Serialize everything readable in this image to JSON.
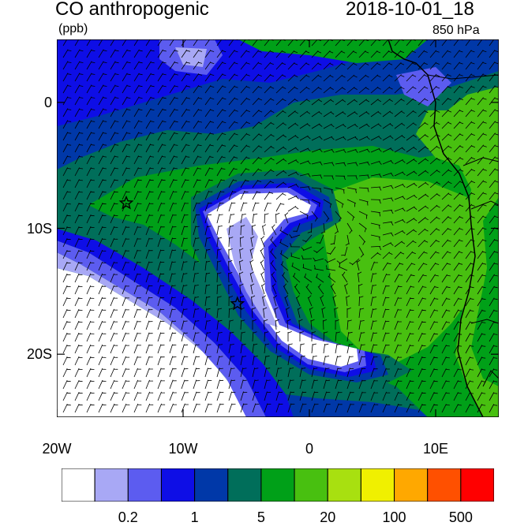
{
  "header": {
    "title": "CO anthropogenic",
    "units": "(ppb)",
    "datetime": "2018-10-01_18",
    "level": "850 hPa"
  },
  "map": {
    "region": "southeast Atlantic",
    "lon_range": [
      -20,
      15
    ],
    "lat_range": [
      -25,
      5
    ],
    "x_ticks": [
      {
        "lon": -20,
        "label": "20W"
      },
      {
        "lon": -10,
        "label": "10W"
      },
      {
        "lon": 0,
        "label": "0"
      },
      {
        "lon": 10,
        "label": "10E"
      }
    ],
    "y_ticks": [
      {
        "lat": 0,
        "label": "0"
      },
      {
        "lat": -10,
        "label": "10S"
      },
      {
        "lat": -20,
        "label": "20S"
      }
    ],
    "markers": [
      {
        "type": "star",
        "lon": -14.5,
        "lat": -8
      },
      {
        "type": "star",
        "lon": -5.7,
        "lat": -16
      }
    ],
    "overlay": "wind barbs"
  },
  "colorbar": {
    "colors": [
      "#ffffff",
      "#a8a8f5",
      "#5c5cf0",
      "#0e0ee6",
      "#0038a8",
      "#006e5a",
      "#00a018",
      "#48c010",
      "#a8e010",
      "#f0f000",
      "#ffa800",
      "#ff5000",
      "#ff0000"
    ],
    "labels": [
      {
        "text": "0.2",
        "boundary": 2
      },
      {
        "text": "1",
        "boundary": 4
      },
      {
        "text": "5",
        "boundary": 6
      },
      {
        "text": "20",
        "boundary": 8
      },
      {
        "text": "100",
        "boundary": 10
      },
      {
        "text": "500",
        "boundary": 12
      }
    ]
  }
}
